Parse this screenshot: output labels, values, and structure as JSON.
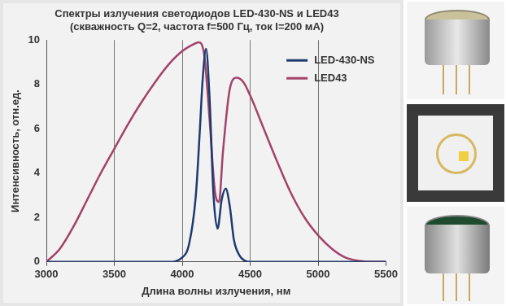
{
  "chart_data": {
    "type": "line",
    "title": [
      "Спектры излучения светодиодов LED-430-NS и LED43",
      "(скважность Q=2, частота f=500 Гц, ток I=200 мА)"
    ],
    "x_label": "Длина волны излучения, нм",
    "y_label": "Интенсивность, отн.ед.",
    "series": [
      {
        "name": "LED-430-NS",
        "color": "#1f3a6e",
        "x": [
          3000,
          3500,
          3900,
          4000,
          4050,
          4100,
          4130,
          4150,
          4175,
          4200,
          4230,
          4260,
          4290,
          4320,
          4350,
          4380,
          4420,
          4460,
          4500,
          5000,
          5500
        ],
        "values": [
          0,
          0,
          0,
          0.2,
          0.8,
          3.0,
          6.0,
          8.2,
          9.6,
          7.5,
          3.0,
          1.5,
          2.8,
          3.3,
          2.5,
          1.0,
          0.3,
          0.05,
          0,
          0,
          0
        ]
      },
      {
        "name": "LED43",
        "color": "#a3426a",
        "x": [
          3000,
          3100,
          3200,
          3300,
          3400,
          3500,
          3600,
          3700,
          3800,
          3900,
          4000,
          4080,
          4120,
          4160,
          4200,
          4240,
          4270,
          4300,
          4350,
          4400,
          4450,
          4500,
          4600,
          4700,
          4800,
          4900,
          5000,
          5100,
          5200,
          5300,
          5400,
          5500
        ],
        "values": [
          0,
          0.6,
          1.6,
          2.8,
          4.0,
          5.1,
          6.2,
          7.2,
          8.1,
          8.9,
          9.5,
          9.8,
          9.9,
          9.4,
          6.5,
          3.2,
          2.7,
          5.0,
          7.8,
          8.3,
          8.1,
          7.5,
          6.0,
          4.5,
          3.1,
          2.0,
          1.2,
          0.6,
          0.2,
          0.05,
          0,
          0
        ]
      }
    ],
    "xlim": [
      3000,
      5500
    ],
    "xticks": [
      3000,
      3500,
      4000,
      4500,
      5000,
      5500
    ],
    "ylim": [
      0,
      10
    ],
    "yticks": [
      0,
      2,
      4,
      6,
      8,
      10
    ],
    "grid": true,
    "legend": "upper right"
  }
}
